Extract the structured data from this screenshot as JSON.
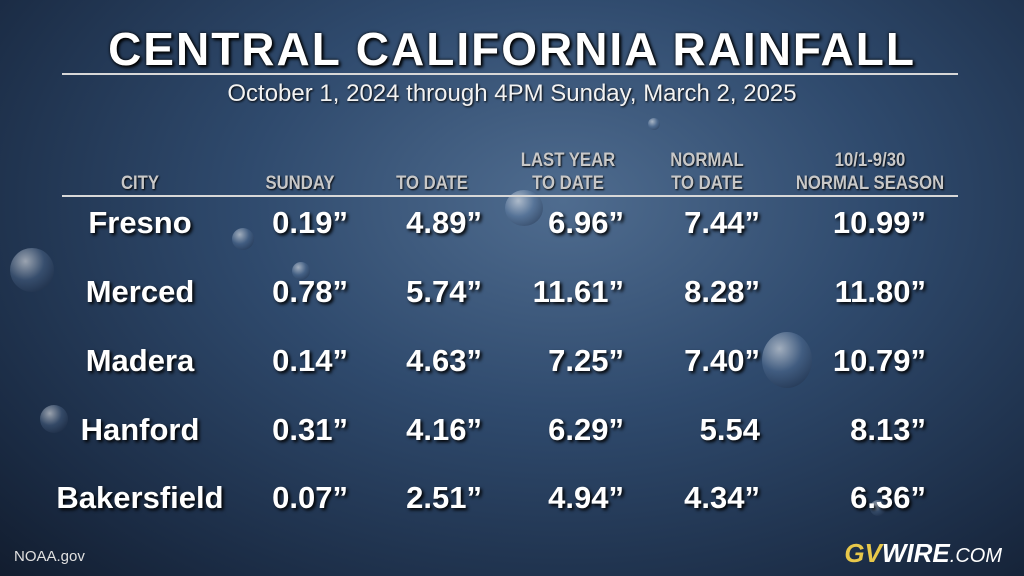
{
  "header": {
    "title": "CENTRAL CALIFORNIA RAINFALL",
    "subtitle": "October 1, 2024 through 4PM Sunday, March 2, 2025"
  },
  "table": {
    "columns": [
      [
        "CITY"
      ],
      [
        "SUNDAY"
      ],
      [
        "TO DATE"
      ],
      [
        "LAST YEAR",
        "TO DATE"
      ],
      [
        "NORMAL",
        "TO DATE"
      ],
      [
        "10/1-9/30",
        "NORMAL SEASON"
      ]
    ],
    "rows": [
      [
        "Fresno",
        "0.19”",
        "4.89”",
        "6.96”",
        "7.44”",
        "10.99”"
      ],
      [
        "Merced",
        "0.78”",
        "5.74”",
        "11.61”",
        "8.28”",
        "11.80”"
      ],
      [
        "Madera",
        "0.14”",
        "4.63”",
        "7.25”",
        "7.40”",
        "10.79”"
      ],
      [
        "Hanford",
        "0.31”",
        "4.16”",
        "6.29”",
        "5.54",
        "8.13”"
      ],
      [
        "Bakersfield",
        "0.07”",
        "2.51”",
        "4.94”",
        "4.34”",
        "6.36”"
      ]
    ]
  },
  "footer": {
    "source": "NOAA.gov",
    "logo": [
      "GV",
      "WIRE",
      ".COM"
    ]
  }
}
